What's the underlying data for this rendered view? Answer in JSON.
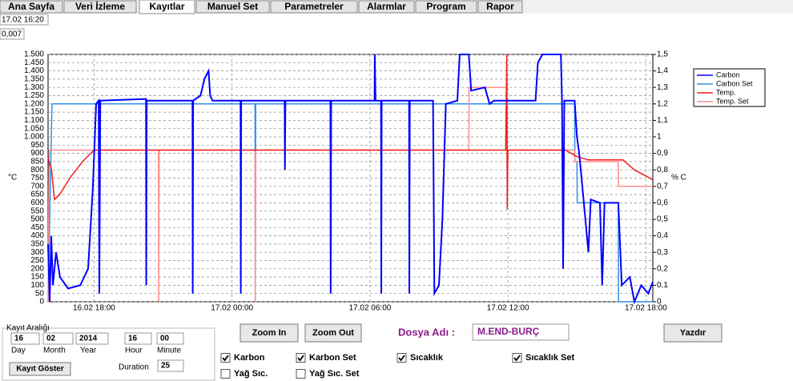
{
  "tabs": [
    "Ana Sayfa",
    "Veri İzleme",
    "Kayıtlar",
    "Manuel Set",
    "Parametreler",
    "Alarmlar",
    "Program",
    "Rapor"
  ],
  "active_tab": 2,
  "timestamp": "17.02 16:20",
  "readout": "0,007",
  "chart_data": {
    "type": "line",
    "ylabel": "°C",
    "y2label": "% C",
    "xlim": [
      0,
      26.3
    ],
    "xticks": [
      {
        "value": 2,
        "label": "16.02 18:00"
      },
      {
        "value": 8,
        "label": "17.02 00:00"
      },
      {
        "value": 14,
        "label": "17.02 06:00"
      },
      {
        "value": 20,
        "label": "17.02 12:00"
      },
      {
        "value": 26,
        "label": "17.02 18:00"
      }
    ],
    "ylim": [
      0,
      1500
    ],
    "yticks": [
      0,
      50,
      100,
      150,
      200,
      250,
      300,
      350,
      400,
      450,
      500,
      550,
      600,
      650,
      700,
      750,
      800,
      850,
      900,
      950,
      {
        "value": 1000,
        "label": "1.000"
      },
      {
        "value": 1050,
        "label": "1.050"
      },
      {
        "value": 1100,
        "label": "1.100"
      },
      {
        "value": 1150,
        "label": "1.150"
      },
      {
        "value": 1200,
        "label": "1.200"
      },
      {
        "value": 1250,
        "label": "1.250"
      },
      {
        "value": 1300,
        "label": "1.300"
      },
      {
        "value": 1350,
        "label": "1.350"
      },
      {
        "value": 1400,
        "label": "1.400"
      },
      {
        "value": 1450,
        "label": "1.450"
      },
      {
        "value": 1500,
        "label": "1.500"
      }
    ],
    "y2lim": [
      0,
      1.5
    ],
    "y2ticks": [
      0,
      {
        "value": 0.1,
        "label": "0,1"
      },
      {
        "value": 0.2,
        "label": "0,2"
      },
      {
        "value": 0.3,
        "label": "0,3"
      },
      {
        "value": 0.4,
        "label": "0,4"
      },
      {
        "value": 0.5,
        "label": "0,5"
      },
      {
        "value": 0.6,
        "label": "0,6"
      },
      {
        "value": 0.7,
        "label": "0,7"
      },
      {
        "value": 0.8,
        "label": "0,8"
      },
      {
        "value": 0.9,
        "label": "0,9"
      },
      1,
      {
        "value": 1.1,
        "label": "1,1"
      },
      {
        "value": 1.2,
        "label": "1,2"
      },
      {
        "value": 1.3,
        "label": "1,3"
      },
      {
        "value": 1.4,
        "label": "1,4"
      },
      {
        "value": 1.5,
        "label": "1,5"
      }
    ],
    "grid": true,
    "legend": "right",
    "series": [
      {
        "name": "Carbon",
        "color": "#0000ff",
        "axis": "y2",
        "x": [
          0,
          0.07,
          0.14,
          0.21,
          0.35,
          0.52,
          0.87,
          1.4,
          1.74,
          1.95,
          2.09,
          2.2,
          2.23,
          2.27,
          4.26,
          4.27,
          4.29,
          6.28,
          6.29,
          6.31,
          6.63,
          6.8,
          6.98,
          7.05,
          7.15,
          8.37,
          8.38,
          8.4,
          10.29,
          10.3,
          10.32,
          12.28,
          12.29,
          12.31,
          14.2,
          14.21,
          14.24,
          14.48,
          14.49,
          14.51,
          15.7,
          15.71,
          15.73,
          16.74,
          16.8,
          17.0,
          17.15,
          17.3,
          17.8,
          17.9,
          18.3,
          18.4,
          19.0,
          19.2,
          19.4,
          21.2,
          21.3,
          21.5,
          22.3,
          22.35,
          22.4,
          22.45,
          22.9,
          23.0,
          23.1,
          23.3,
          23.5,
          23.6,
          24.0,
          24.1,
          24.2,
          24.8,
          24.95,
          25.3,
          25.5,
          25.8,
          26.1,
          26.3
        ],
        "values": [
          0.35,
          0.0,
          0.4,
          0.1,
          0.3,
          0.15,
          0.08,
          0.1,
          0.2,
          0.7,
          1.2,
          1.22,
          0.05,
          1.22,
          1.23,
          0.1,
          1.22,
          1.22,
          0.05,
          1.22,
          1.25,
          1.35,
          1.4,
          1.25,
          1.22,
          1.22,
          0.05,
          1.22,
          1.22,
          0.8,
          1.22,
          1.22,
          0.05,
          1.22,
          1.22,
          1.5,
          1.22,
          1.22,
          0.05,
          1.22,
          1.22,
          0.05,
          1.22,
          1.22,
          0.05,
          0.1,
          0.5,
          1.2,
          1.22,
          1.5,
          1.5,
          1.28,
          1.3,
          1.2,
          1.22,
          1.22,
          1.45,
          1.5,
          1.5,
          1.22,
          0.2,
          1.22,
          1.22,
          1.0,
          0.9,
          0.6,
          0.3,
          0.62,
          0.6,
          0.1,
          0.6,
          0.6,
          0.1,
          0.15,
          0.0,
          0.1,
          0.05,
          0.12
        ]
      },
      {
        "name": "Carbon Set",
        "color": "#2f8fe8",
        "axis": "y2",
        "x": [
          0,
          0.17,
          9.0,
          9.01,
          9.03,
          22.9,
          22.91,
          23.0,
          23.01,
          24.8,
          24.81,
          26.3
        ],
        "values": [
          0,
          1.2,
          1.2,
          0,
          1.2,
          1.2,
          0.85,
          0.85,
          0.6,
          0.6,
          0,
          0
        ]
      },
      {
        "name": "Temp.",
        "color": "#ee1c1c",
        "x": [
          0,
          0.15,
          0.28,
          0.5,
          1.0,
          1.5,
          2.0,
          19.9,
          19.95,
          19.97,
          20.0,
          22.5,
          23.0,
          23.5,
          25.0,
          25.5,
          26.3
        ],
        "values": [
          870,
          800,
          620,
          650,
          760,
          850,
          920,
          920,
          1500,
          560,
          920,
          920,
          880,
          860,
          860,
          800,
          740
        ]
      },
      {
        "name": "Temp. Set",
        "color": "#ff8c8c",
        "x": [
          0,
          0.05,
          4.8,
          4.81,
          4.83,
          9.0,
          9.01,
          9.03,
          18.3,
          18.31,
          19.95,
          19.96,
          22.9,
          22.91,
          24.8,
          24.81,
          26.3
        ],
        "values": [
          0,
          920,
          920,
          0,
          920,
          920,
          0,
          920,
          920,
          1300,
          1300,
          920,
          920,
          850,
          850,
          700,
          700
        ]
      }
    ]
  },
  "range": {
    "title": "Kayıt Aralığı",
    "fields": [
      {
        "value": "16",
        "label": "Day"
      },
      {
        "value": "02",
        "label": "Month"
      },
      {
        "value": "2014",
        "label": "Year"
      },
      {
        "value": "16",
        "label": "Hour"
      },
      {
        "value": "00",
        "label": "Minute"
      }
    ],
    "button": "Kayıt Göster",
    "duration_label": "Duration",
    "duration": "25"
  },
  "buttons": {
    "zoom_in": "Zoom In",
    "zoom_out": "Zoom Out",
    "print": "Yazdır"
  },
  "file": {
    "label": "Dosya Adı :",
    "name": "M.END-BURÇ"
  },
  "checkboxes": [
    {
      "label": "Karbon",
      "checked": true
    },
    {
      "label": "Karbon Set",
      "checked": true
    },
    {
      "label": "Sıcaklık",
      "checked": true
    },
    {
      "label": "Sıcaklık Set",
      "checked": true
    },
    {
      "label": "Yağ Sıc.",
      "checked": false
    },
    {
      "label": "Yağ Sıc. Set",
      "checked": false
    }
  ]
}
